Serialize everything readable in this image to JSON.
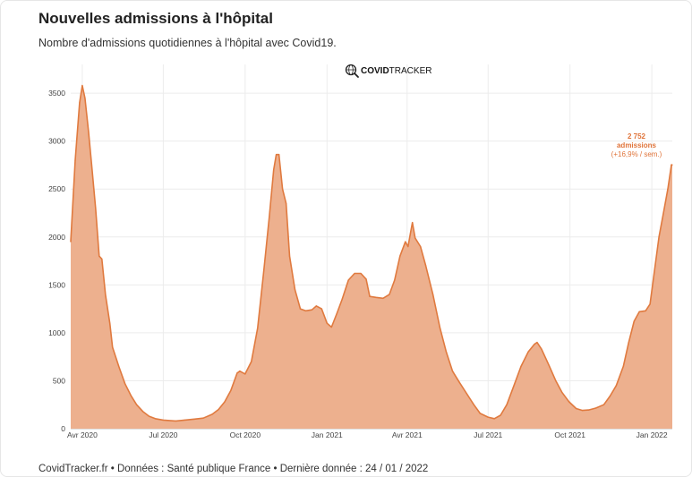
{
  "header": {
    "title": "Nouvelles admissions à l'hôpital",
    "subtitle": "Nombre d'admissions quotidiennes à l'hôpital avec Covid19."
  },
  "brand": {
    "bold": "COVID",
    "rest": "TRACKER",
    "icon": "globe-search-icon"
  },
  "footer": {
    "text": "CovidTracker.fr • Données : Santé publique France • Dernière donnée : 24 / 01 / 2022"
  },
  "annotation": {
    "line1": "2 752",
    "line2": "admissions",
    "line3": "(+16,9% / sem.)"
  },
  "colors": {
    "line": "#e07a3f",
    "fill": "#edb08e",
    "annotation": "#e0743a",
    "grid": "#ececec"
  },
  "chart_data": {
    "type": "area",
    "title": "Nouvelles admissions à l'hôpital",
    "subtitle": "Nombre d'admissions quotidiennes à l'hôpital avec Covid19.",
    "xlabel": "",
    "ylabel": "",
    "x_range": [
      "2020-03-19",
      "2022-01-24"
    ],
    "ylim": [
      0,
      3800
    ],
    "y_ticks": [
      0,
      500,
      1000,
      1500,
      2000,
      2500,
      3000,
      3500
    ],
    "x_ticks": [
      {
        "date": "2020-04-01",
        "label": "Avr 2020"
      },
      {
        "date": "2020-07-01",
        "label": "Jul 2020"
      },
      {
        "date": "2020-10-01",
        "label": "Oct 2020"
      },
      {
        "date": "2021-01-01",
        "label": "Jan 2021"
      },
      {
        "date": "2021-04-01",
        "label": "Avr 2021"
      },
      {
        "date": "2021-07-01",
        "label": "Jul 2021"
      },
      {
        "date": "2021-10-01",
        "label": "Oct 2021"
      },
      {
        "date": "2022-01-01",
        "label": "Jan 2022"
      }
    ],
    "grid": true,
    "series": [
      {
        "points": [
          [
            "2020-03-19",
            0
          ],
          [
            "2020-03-19",
            1950
          ],
          [
            "2020-03-24",
            2800
          ],
          [
            "2020-03-29",
            3400
          ],
          [
            "2020-04-01",
            3580
          ],
          [
            "2020-04-04",
            3450
          ],
          [
            "2020-04-08",
            3100
          ],
          [
            "2020-04-12",
            2700
          ],
          [
            "2020-04-16",
            2300
          ],
          [
            "2020-04-20",
            1800
          ],
          [
            "2020-04-23",
            1770
          ],
          [
            "2020-04-27",
            1400
          ],
          [
            "2020-05-02",
            1100
          ],
          [
            "2020-05-05",
            850
          ],
          [
            "2020-05-12",
            650
          ],
          [
            "2020-05-19",
            470
          ],
          [
            "2020-05-26",
            340
          ],
          [
            "2020-06-01",
            250
          ],
          [
            "2020-06-08",
            180
          ],
          [
            "2020-06-15",
            130
          ],
          [
            "2020-06-22",
            105
          ],
          [
            "2020-07-01",
            90
          ],
          [
            "2020-07-15",
            80
          ],
          [
            "2020-07-25",
            90
          ],
          [
            "2020-08-05",
            100
          ],
          [
            "2020-08-15",
            110
          ],
          [
            "2020-08-25",
            150
          ],
          [
            "2020-09-01",
            200
          ],
          [
            "2020-09-08",
            280
          ],
          [
            "2020-09-15",
            400
          ],
          [
            "2020-09-22",
            580
          ],
          [
            "2020-09-25",
            600
          ],
          [
            "2020-10-01",
            570
          ],
          [
            "2020-10-08",
            700
          ],
          [
            "2020-10-15",
            1050
          ],
          [
            "2020-10-22",
            1650
          ],
          [
            "2020-10-28",
            2200
          ],
          [
            "2020-11-02",
            2700
          ],
          [
            "2020-11-05",
            2860
          ],
          [
            "2020-11-08",
            2860
          ],
          [
            "2020-11-12",
            2500
          ],
          [
            "2020-11-16",
            2350
          ],
          [
            "2020-11-20",
            1800
          ],
          [
            "2020-11-26",
            1450
          ],
          [
            "2020-12-02",
            1250
          ],
          [
            "2020-12-08",
            1230
          ],
          [
            "2020-12-15",
            1240
          ],
          [
            "2020-12-20",
            1280
          ],
          [
            "2020-12-26",
            1250
          ],
          [
            "2021-01-01",
            1100
          ],
          [
            "2021-01-06",
            1060
          ],
          [
            "2021-01-12",
            1200
          ],
          [
            "2021-01-18",
            1350
          ],
          [
            "2021-01-25",
            1550
          ],
          [
            "2021-02-01",
            1620
          ],
          [
            "2021-02-08",
            1620
          ],
          [
            "2021-02-14",
            1560
          ],
          [
            "2021-02-18",
            1380
          ],
          [
            "2021-02-25",
            1370
          ],
          [
            "2021-03-05",
            1360
          ],
          [
            "2021-03-12",
            1400
          ],
          [
            "2021-03-18",
            1550
          ],
          [
            "2021-03-24",
            1800
          ],
          [
            "2021-03-30",
            1950
          ],
          [
            "2021-04-02",
            1900
          ],
          [
            "2021-04-05",
            2050
          ],
          [
            "2021-04-07",
            2150
          ],
          [
            "2021-04-10",
            1990
          ],
          [
            "2021-04-16",
            1900
          ],
          [
            "2021-04-22",
            1700
          ],
          [
            "2021-04-30",
            1400
          ],
          [
            "2021-05-08",
            1050
          ],
          [
            "2021-05-15",
            800
          ],
          [
            "2021-05-22",
            600
          ],
          [
            "2021-05-30",
            480
          ],
          [
            "2021-06-08",
            350
          ],
          [
            "2021-06-15",
            250
          ],
          [
            "2021-06-22",
            160
          ],
          [
            "2021-07-01",
            120
          ],
          [
            "2021-07-08",
            105
          ],
          [
            "2021-07-15",
            140
          ],
          [
            "2021-07-22",
            250
          ],
          [
            "2021-07-30",
            450
          ],
          [
            "2021-08-07",
            650
          ],
          [
            "2021-08-15",
            800
          ],
          [
            "2021-08-22",
            880
          ],
          [
            "2021-08-25",
            900
          ],
          [
            "2021-08-30",
            830
          ],
          [
            "2021-09-08",
            650
          ],
          [
            "2021-09-15",
            500
          ],
          [
            "2021-09-22",
            380
          ],
          [
            "2021-09-30",
            280
          ],
          [
            "2021-10-08",
            210
          ],
          [
            "2021-10-15",
            190
          ],
          [
            "2021-10-22",
            195
          ],
          [
            "2021-10-30",
            215
          ],
          [
            "2021-11-08",
            250
          ],
          [
            "2021-11-15",
            340
          ],
          [
            "2021-11-22",
            450
          ],
          [
            "2021-11-30",
            650
          ],
          [
            "2021-12-06",
            900
          ],
          [
            "2021-12-12",
            1120
          ],
          [
            "2021-12-18",
            1220
          ],
          [
            "2021-12-25",
            1230
          ],
          [
            "2021-12-30",
            1300
          ],
          [
            "2022-01-04",
            1650
          ],
          [
            "2022-01-09",
            2000
          ],
          [
            "2022-01-14",
            2250
          ],
          [
            "2022-01-19",
            2500
          ],
          [
            "2022-01-23",
            2752
          ],
          [
            "2022-01-24",
            2752
          ],
          [
            "2022-01-24",
            0
          ]
        ]
      }
    ]
  }
}
